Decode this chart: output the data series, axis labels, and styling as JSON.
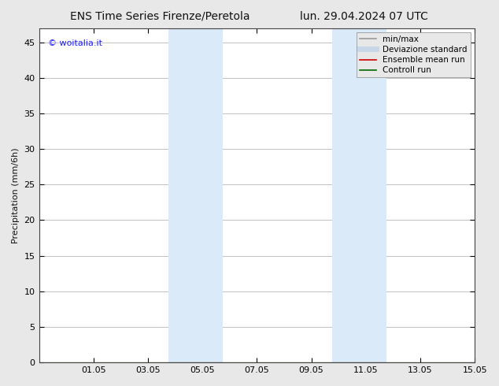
{
  "title_left": "ENS Time Series Firenze/Peretola",
  "title_right": "lun. 29.04.2024 07 UTC",
  "ylabel": "Precipitation (mm/6h)",
  "ylim": [
    0,
    47
  ],
  "yticks": [
    0,
    5,
    10,
    15,
    20,
    25,
    30,
    35,
    40,
    45
  ],
  "xlim": [
    0,
    16
  ],
  "xtick_labels": [
    "01.05",
    "03.05",
    "05.05",
    "07.05",
    "09.05",
    "11.05",
    "13.05",
    "15.05"
  ],
  "xtick_positions": [
    2,
    4,
    6,
    8,
    10,
    12,
    14,
    16
  ],
  "shaded_bands": [
    {
      "x_start": 4.75,
      "x_end": 5.75,
      "color": "#daeaf8"
    },
    {
      "x_start": 5.75,
      "x_end": 6.75,
      "color": "#daeaf8"
    },
    {
      "x_start": 10.75,
      "x_end": 11.75,
      "color": "#daeaf8"
    },
    {
      "x_start": 11.75,
      "x_end": 12.75,
      "color": "#daeaf8"
    }
  ],
  "watermark_text": "© woitalia.it",
  "watermark_color": "#1a1aff",
  "background_color": "#e8e8e8",
  "plot_bg_color": "#ffffff",
  "legend_items": [
    {
      "label": "min/max",
      "color": "#999999",
      "lw": 1.2,
      "style": "solid"
    },
    {
      "label": "Deviazione standard",
      "color": "#c8d8e8",
      "lw": 5,
      "style": "solid"
    },
    {
      "label": "Ensemble mean run",
      "color": "#cc0000",
      "lw": 1.2,
      "style": "solid"
    },
    {
      "label": "Controll run",
      "color": "#006600",
      "lw": 1.2,
      "style": "solid"
    }
  ],
  "font_size_title": 10,
  "font_size_axis": 8,
  "font_size_legend": 7.5,
  "font_size_watermark": 8,
  "font_size_ylabel": 8
}
